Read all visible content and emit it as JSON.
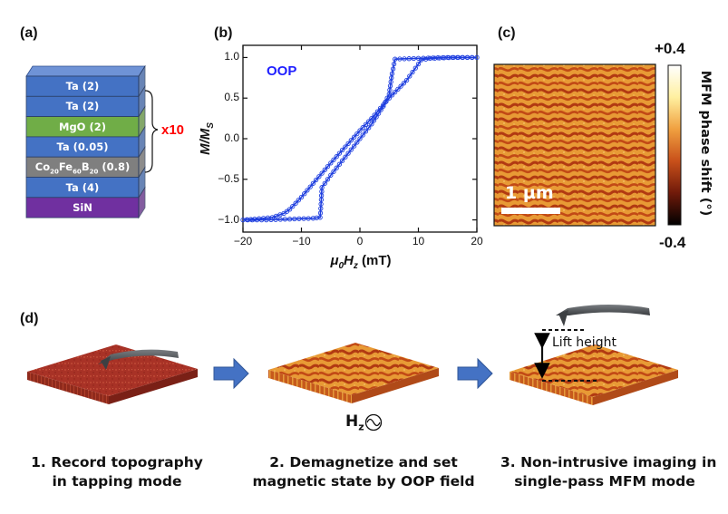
{
  "panel_labels": {
    "a": "(a)",
    "b": "(b)",
    "c": "(c)",
    "d": "(d)"
  },
  "stack": {
    "layers": [
      {
        "label": "Ta (2)",
        "color": "#4472c4"
      },
      {
        "label": "Ta (2)",
        "color": "#4472c4"
      },
      {
        "label": "MgO (2)",
        "color": "#70ad47"
      },
      {
        "label": "Ta (0.05)",
        "color": "#4472c4"
      },
      {
        "label": "Co",
        "sub1": "20",
        "mid1": "Fe",
        "sub2": "60",
        "mid2": "B",
        "sub3": "20",
        "tail": " (0.8)",
        "color": "#7f7f7f"
      },
      {
        "label": "Ta (4)",
        "color": "#4472c4"
      },
      {
        "label": "SiN",
        "color": "#7030a0"
      }
    ],
    "repeat_label": "x10",
    "repeat_color": "#ff0000"
  },
  "chart_data": {
    "type": "line",
    "annotation": "OOP",
    "annotation_color": "#1f1fff",
    "series_color": "#1f3fdf",
    "xlabel_mu": "μ",
    "xlabel_sub0": "0",
    "xlabel_H": "H",
    "xlabel_subz": "z",
    "xlabel_unit": " (mT)",
    "ylabel_main": "M/M",
    "ylabel_sub": "S",
    "xlim": [
      -20,
      20
    ],
    "ylim": [
      -1.15,
      1.15
    ],
    "xticks": [
      -20,
      -10,
      0,
      10,
      20
    ],
    "xtick_labels": [
      "−20",
      "−10",
      "0",
      "10",
      "20"
    ],
    "yticks": [
      -1.0,
      -0.5,
      0.0,
      0.5,
      1.0
    ],
    "ytick_labels": [
      "−1.0",
      "−0.5",
      "0.0",
      "0.5",
      "1.0"
    ],
    "series": [
      {
        "name": "descending branch",
        "x": [
          20,
          16,
          12,
          10.5,
          10,
          8,
          5,
          2,
          0,
          -2,
          -5,
          -8,
          -10,
          -12,
          -13,
          -15,
          -18,
          -20
        ],
        "y": [
          1.0,
          1.0,
          0.99,
          0.97,
          0.92,
          0.72,
          0.5,
          0.25,
          0.1,
          -0.06,
          -0.3,
          -0.55,
          -0.72,
          -0.87,
          -0.92,
          -0.97,
          -0.99,
          -1.0
        ]
      },
      {
        "name": "ascending branch",
        "x": [
          -20,
          -16,
          -12,
          -8,
          -6.8,
          -6.6,
          -6.5,
          -5,
          -2,
          0,
          2,
          4,
          5,
          5.5,
          6,
          10,
          15,
          20
        ],
        "y": [
          -1.0,
          -1.0,
          -0.99,
          -0.98,
          -0.97,
          -0.75,
          -0.6,
          -0.45,
          -0.18,
          0.0,
          0.18,
          0.4,
          0.55,
          0.8,
          0.98,
          0.99,
          1.0,
          1.0
        ]
      }
    ]
  },
  "mfm": {
    "scalebar_label": "1 µm",
    "cbar_max": "+0.4",
    "cbar_min": "-0.4",
    "cbar_label": "MFM phase shift (°)"
  },
  "steps": {
    "lift_height_label": "Lift height",
    "field_main": "H",
    "field_sub": "z",
    "captions": [
      {
        "line1": "1. Record topography",
        "line2": "in tapping mode"
      },
      {
        "line1": "2. Demagnetize and set",
        "line2": "magnetic state by OOP field"
      },
      {
        "line1": "3. Non-intrusive imaging in",
        "line2": "single-pass MFM mode"
      }
    ]
  },
  "colors": {
    "arrow": "#4472c4",
    "cantilever": "#555a5e"
  }
}
